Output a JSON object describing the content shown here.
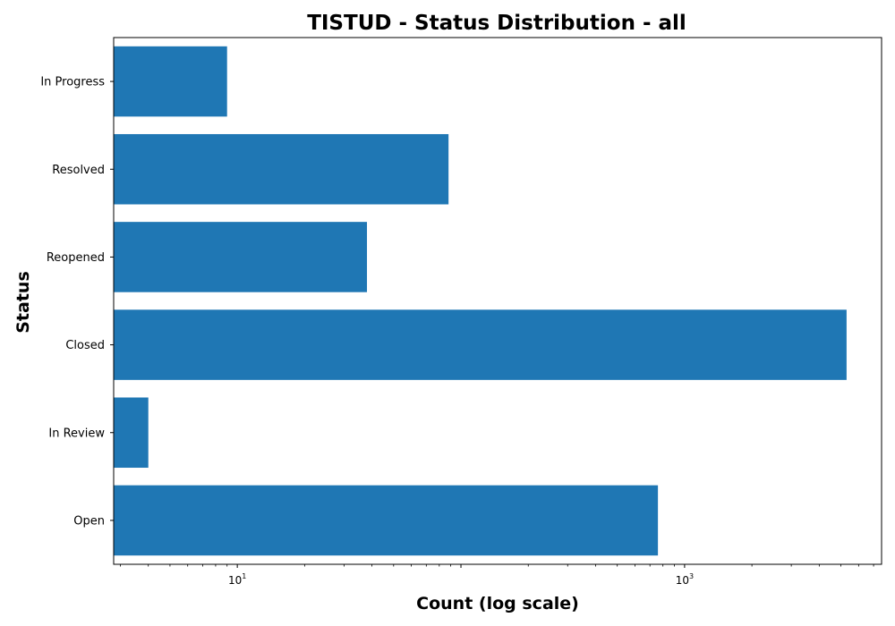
{
  "chart_data": {
    "type": "bar",
    "orientation": "horizontal",
    "title": "TISTUD - Status Distribution - all",
    "xlabel": "Count (log scale)",
    "ylabel": "Status",
    "x_scale": "log",
    "xlim": [
      2.8,
      7600
    ],
    "x_major_ticks": [
      {
        "value": 10,
        "base": "10",
        "exp": "1"
      },
      {
        "value": 1000,
        "base": "10",
        "exp": "3"
      }
    ],
    "x_major_tick_values_unlabeled": [
      100
    ],
    "categories": [
      "In Progress",
      "Resolved",
      "Reopened",
      "Closed",
      "In Review",
      "Open"
    ],
    "values": [
      9,
      88,
      38,
      5300,
      4,
      760
    ],
    "bar_color": "#1f77b4",
    "grid": false,
    "legend": "none"
  }
}
